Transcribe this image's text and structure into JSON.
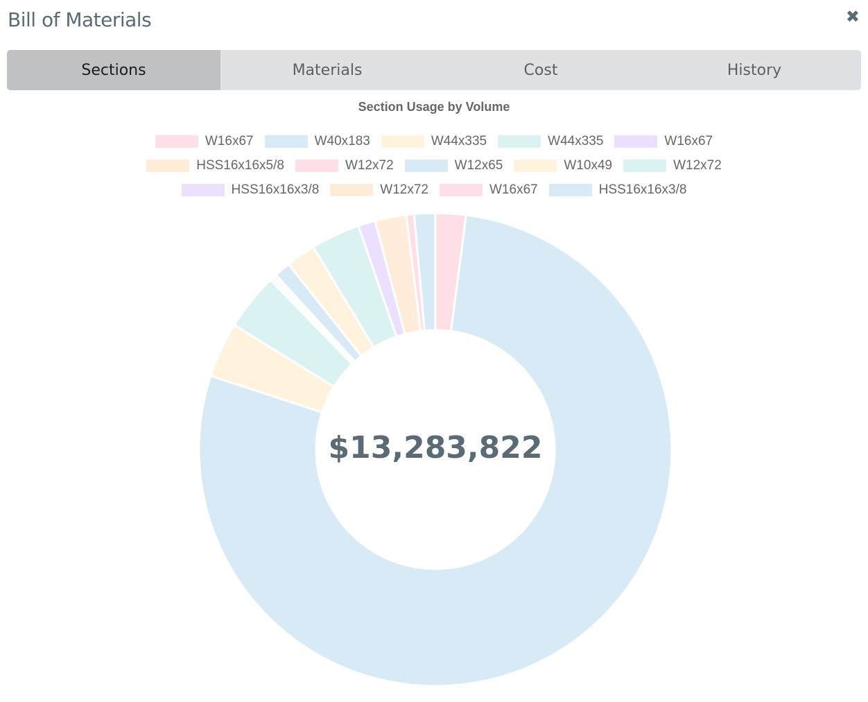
{
  "header": {
    "title": "Bill of Materials",
    "close_icon": "close-icon"
  },
  "tabs": [
    {
      "label": "Sections",
      "active": true
    },
    {
      "label": "Materials"
    },
    {
      "label": "Cost"
    },
    {
      "label": "History"
    }
  ],
  "chart_data": {
    "type": "pie",
    "variant": "doughnut",
    "title": "Section Usage by Volume",
    "center_label": "$13,283,822",
    "legend_position": "top",
    "unit": "percent (estimated)",
    "categories": [
      "W16x67",
      "W40x183",
      "W44x335",
      "W44x335",
      "W16x67",
      "HSS16x16x5/8",
      "W12x72",
      "W12x65",
      "W10x49",
      "W12x72",
      "HSS16x16x3/8",
      "W12x72",
      "W16x67",
      "HSS16x16x3/8"
    ],
    "values": [
      2.08,
      77.97,
      3.78,
      3.89,
      0.17,
      0.17,
      0.17,
      1.11,
      2.03,
      3.36,
      1.17,
      2.14,
      0.53,
      1.44
    ],
    "colors": [
      "#ffdfe6",
      "#d9eaf7",
      "#fff3de",
      "#dbf2f2",
      "#ebe0ff",
      "#ffecd9",
      "#ffdfe6",
      "#d9eaf7",
      "#fff3de",
      "#dbf2f2",
      "#ebe0ff",
      "#ffecd9",
      "#ffdfe6",
      "#d9eaf7"
    ]
  }
}
